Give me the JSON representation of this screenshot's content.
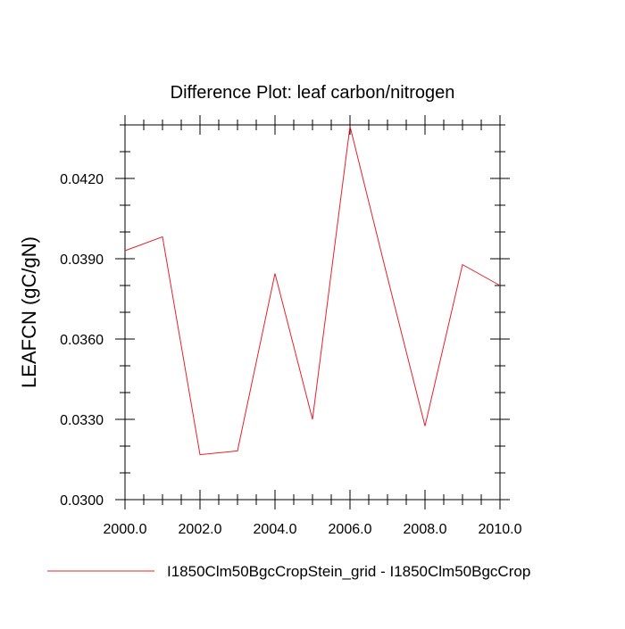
{
  "chart_data": {
    "type": "line",
    "title": "Difference Plot: leaf carbon/nitrogen",
    "xlabel": "",
    "ylabel": "LEAFCN  (gC/gN)",
    "x": [
      2000,
      2001,
      2002,
      2003,
      2004,
      2005,
      2006,
      2007,
      2008,
      2009,
      2010
    ],
    "xlim": [
      2000,
      2010
    ],
    "ylim": [
      0.03,
      0.044
    ],
    "x_ticks": [
      {
        "value": 2000,
        "label": "2000.0"
      },
      {
        "value": 2002,
        "label": "2002.0"
      },
      {
        "value": 2004,
        "label": "2004.0"
      },
      {
        "value": 2006,
        "label": "2006.0"
      },
      {
        "value": 2008,
        "label": "2008.0"
      },
      {
        "value": 2010,
        "label": "2010.0"
      }
    ],
    "y_ticks": [
      {
        "value": 0.03,
        "label": "0.0300"
      },
      {
        "value": 0.033,
        "label": "0.0330"
      },
      {
        "value": 0.036,
        "label": "0.0360"
      },
      {
        "value": 0.039,
        "label": "0.0390"
      },
      {
        "value": 0.042,
        "label": "0.0420"
      }
    ],
    "x_minor_step": 0.5,
    "y_minor_step": 0.001,
    "grid": false,
    "legend_position": "bottom",
    "series": [
      {
        "name": "I1850Clm50BgcCropStein_grid - I1850Clm50BgcCrop",
        "color": "#e8202a",
        "values": [
          0.0393,
          0.03982,
          0.03168,
          0.03182,
          0.03845,
          0.033,
          0.04395,
          0.0383,
          0.03275,
          0.03878,
          0.038
        ]
      }
    ]
  }
}
